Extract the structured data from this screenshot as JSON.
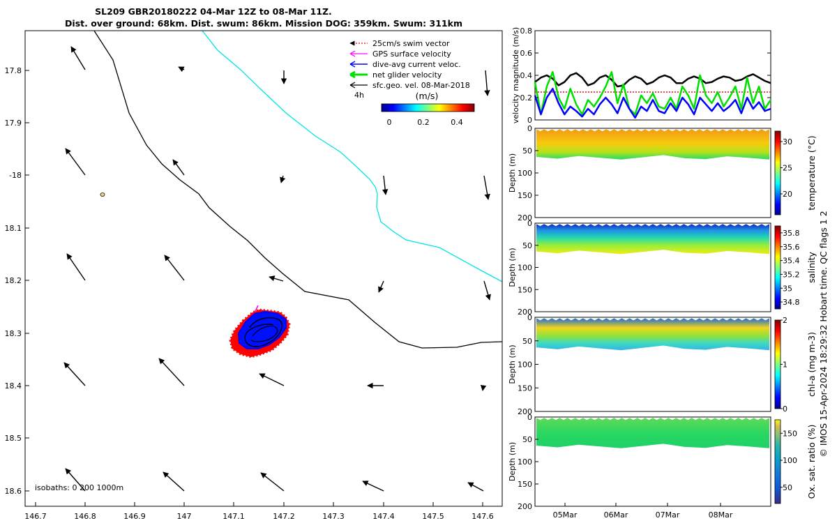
{
  "figure": {
    "title_line1": "SL209 GBR20180222 04-Mar 12Z to 08-Mar 11Z.",
    "title_line2": "Dist. over ground: 68km. Dist. swum: 86km. Mission DOG: 359km. Swum: 311km",
    "copyright": "© IMOS 15-Apr-2024 18:29:32 Hobart time. QC flags 1  2",
    "colors": {
      "coastline": "#000000",
      "isobath": "#00e5e5",
      "swim_vector": "#ff0000",
      "gps_velocity": "#ff00ff",
      "dive_avg_current": "#0000ff",
      "net_glider_velocity": "#00e000",
      "geostrophic_velocity": "#000000"
    }
  },
  "map": {
    "lon_ticks": [
      "146.7",
      "146.8",
      "146.9",
      "147",
      "147.1",
      "147.2",
      "147.3",
      "147.4",
      "147.5",
      "147.6"
    ],
    "lat_ticks": [
      "17.8",
      "17.9",
      "-18",
      "18.1",
      "18.2",
      "18.3",
      "18.4",
      "18.5",
      "18.6"
    ],
    "isobaths_label": "isobaths: 0   200  1000m",
    "legend": {
      "swim": "25cm/s swim vector",
      "gps": "GPS surface velocity",
      "dive_avg": "dive-avg current veloc.",
      "net": "net glider velocity",
      "sfc_geo": "sfc.geo. vel. 08-Mar-2018",
      "time_label": "4h"
    },
    "colorbar": {
      "unit": "(m/s)",
      "ticks": [
        "0",
        "0.2",
        "0.4"
      ]
    }
  },
  "chart_data": [
    {
      "type": "line",
      "title": "",
      "ylabel": "velocity magnitude (m/s)",
      "xlabel": "",
      "ylim": [
        0,
        0.8
      ],
      "yticks": [
        "0",
        "0.2",
        "0.4",
        "0.6",
        "0.8"
      ],
      "t": [
        0,
        0.1,
        0.2,
        0.3,
        0.4,
        0.5,
        0.6,
        0.7,
        0.8,
        0.9,
        1.0,
        1.1,
        1.2,
        1.3,
        1.4,
        1.5,
        1.6,
        1.7,
        1.8,
        1.9,
        2.0,
        2.1,
        2.2,
        2.3,
        2.4,
        2.5,
        2.6,
        2.7,
        2.8,
        2.9,
        3.0,
        3.1,
        3.2,
        3.3,
        3.4,
        3.5,
        3.6,
        3.7,
        3.8,
        3.9,
        4.0
      ],
      "series": [
        {
          "name": "sfc.geo. vel.",
          "color": "#000000",
          "width": 2.5,
          "values": [
            0.34,
            0.38,
            0.4,
            0.37,
            0.31,
            0.34,
            0.4,
            0.42,
            0.38,
            0.31,
            0.33,
            0.38,
            0.4,
            0.36,
            0.3,
            0.31,
            0.36,
            0.39,
            0.37,
            0.32,
            0.34,
            0.38,
            0.4,
            0.38,
            0.33,
            0.33,
            0.37,
            0.39,
            0.37,
            0.33,
            0.34,
            0.37,
            0.39,
            0.38,
            0.35,
            0.36,
            0.39,
            0.41,
            0.38,
            0.35,
            0.33
          ]
        },
        {
          "name": "25cm/s swim vector",
          "color": "#ff0000",
          "width": 1.5,
          "dashed": true,
          "values": [
            0.25,
            0.25,
            0.25,
            0.25,
            0.25,
            0.25,
            0.25,
            0.25,
            0.25,
            0.25,
            0.25,
            0.25,
            0.25,
            0.25,
            0.25,
            0.25,
            0.25,
            0.25,
            0.25,
            0.25,
            0.25,
            0.25,
            0.25,
            0.25,
            0.25,
            0.25,
            0.25,
            0.25,
            0.25,
            0.25,
            0.25,
            0.25,
            0.25,
            0.25,
            0.25,
            0.25,
            0.25,
            0.25,
            0.25,
            0.25,
            0.25
          ]
        },
        {
          "name": "net glider velocity",
          "color": "#00e000",
          "width": 2.5,
          "values": [
            0.34,
            0.05,
            0.3,
            0.43,
            0.2,
            0.1,
            0.28,
            0.14,
            0.05,
            0.18,
            0.12,
            0.2,
            0.3,
            0.43,
            0.15,
            0.32,
            0.1,
            0.05,
            0.22,
            0.15,
            0.24,
            0.12,
            0.1,
            0.2,
            0.1,
            0.3,
            0.22,
            0.1,
            0.4,
            0.22,
            0.15,
            0.25,
            0.12,
            0.2,
            0.3,
            0.1,
            0.38,
            0.15,
            0.3,
            0.1,
            0.18
          ]
        },
        {
          "name": "dive-avg current veloc.",
          "color": "#0000ff",
          "width": 2.5,
          "values": [
            0.22,
            0.05,
            0.2,
            0.28,
            0.15,
            0.05,
            0.12,
            0.08,
            0.03,
            0.1,
            0.05,
            0.14,
            0.2,
            0.14,
            0.06,
            0.2,
            0.1,
            0.02,
            0.12,
            0.08,
            0.18,
            0.08,
            0.06,
            0.15,
            0.08,
            0.2,
            0.14,
            0.05,
            0.2,
            0.14,
            0.08,
            0.15,
            0.08,
            0.12,
            0.18,
            0.06,
            0.2,
            0.1,
            0.16,
            0.08,
            0.1
          ]
        }
      ]
    },
    {
      "type": "heatmap",
      "ylabel": "Depth (m)",
      "clabel": "temperature (°C)",
      "ylim": [
        200,
        0
      ],
      "yticks": [
        "0",
        "50",
        "100",
        "150",
        "200"
      ],
      "cbar_ticks": [
        "20",
        "25",
        "30"
      ],
      "crange": [
        16,
        32
      ],
      "profile_depth_m": [
        64,
        68,
        62,
        66,
        70,
        65,
        60,
        67,
        69,
        63,
        66,
        70
      ]
    },
    {
      "type": "heatmap",
      "ylabel": "Depth (m)",
      "clabel": "salinity",
      "ylim": [
        200,
        0
      ],
      "yticks": [
        "0",
        "50",
        "100",
        "150",
        "200"
      ],
      "cbar_ticks": [
        "34.8",
        "35",
        "35.2",
        "35.4",
        "35.6",
        "35.8"
      ],
      "crange": [
        34.7,
        35.9
      ],
      "profile_depth_m": [
        64,
        68,
        62,
        66,
        70,
        65,
        60,
        67,
        69,
        63,
        66,
        70
      ]
    },
    {
      "type": "heatmap",
      "ylabel": "Depth (m)",
      "clabel": "chl-a (mg m-3)",
      "ylim": [
        200,
        0
      ],
      "yticks": [
        "0",
        "50",
        "100",
        "150",
        "200"
      ],
      "cbar_ticks": [
        "0",
        "1",
        "2"
      ],
      "crange": [
        0,
        2
      ],
      "profile_depth_m": [
        64,
        68,
        62,
        66,
        70,
        65,
        60,
        67,
        69,
        63,
        66,
        70
      ]
    },
    {
      "type": "heatmap",
      "ylabel": "Depth (m)",
      "clabel": "Ox. sat. ratio (%)",
      "ylim": [
        200,
        0
      ],
      "yticks": [
        "0",
        "50",
        "100",
        "150",
        "200"
      ],
      "cbar_ticks": [
        "50",
        "100",
        "150"
      ],
      "crange": [
        20,
        175
      ],
      "profile_depth_m": [
        64,
        68,
        62,
        66,
        70,
        65,
        60,
        67,
        69,
        63,
        66,
        70
      ],
      "x_ticks": [
        "05Mar",
        "06Mar",
        "07Mar",
        "08Mar"
      ]
    }
  ]
}
